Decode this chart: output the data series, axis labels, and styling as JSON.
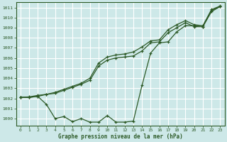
{
  "background_color": "#cde8e8",
  "grid_color": "#ffffff",
  "line_color": "#2d5a27",
  "text_color": "#2d5a27",
  "xlabel": "Graphe pression niveau de la mer (hPa)",
  "ylim": [
    999.3,
    1011.5
  ],
  "xlim": [
    -0.5,
    23.5
  ],
  "yticks": [
    1000,
    1001,
    1002,
    1003,
    1004,
    1005,
    1006,
    1007,
    1008,
    1009,
    1010,
    1011
  ],
  "xticks": [
    0,
    1,
    2,
    3,
    4,
    5,
    6,
    7,
    8,
    9,
    10,
    11,
    12,
    13,
    14,
    15,
    16,
    17,
    18,
    19,
    20,
    21,
    22,
    23
  ],
  "series1": {
    "x": [
      0,
      1,
      2,
      3,
      4,
      5,
      6,
      7,
      8,
      9,
      10,
      11,
      12,
      13,
      14,
      15,
      16,
      17,
      18,
      19,
      20,
      21,
      22,
      23
    ],
    "y": [
      1002.1,
      1002.1,
      1002.2,
      1002.4,
      1002.5,
      1002.8,
      1003.1,
      1003.4,
      1003.8,
      1005.2,
      1005.8,
      1006.0,
      1006.1,
      1006.2,
      1006.7,
      1007.5,
      1007.6,
      1008.5,
      1009.0,
      1009.5,
      1009.1,
      1009.1,
      1010.6,
      1011.1
    ]
  },
  "series2": {
    "x": [
      0,
      1,
      2,
      3,
      4,
      5,
      6,
      7,
      8,
      9,
      10,
      11,
      12,
      13,
      14,
      15,
      16,
      17,
      18,
      19,
      20,
      21,
      22,
      23
    ],
    "y": [
      1002.1,
      1002.15,
      1002.3,
      1002.4,
      1002.6,
      1002.9,
      1003.2,
      1003.5,
      1004.0,
      1005.5,
      1006.1,
      1006.3,
      1006.4,
      1006.6,
      1007.1,
      1007.7,
      1007.8,
      1008.8,
      1009.3,
      1009.7,
      1009.3,
      1009.2,
      1010.8,
      1011.15
    ]
  },
  "series3": {
    "x": [
      0,
      1,
      2,
      3,
      4,
      5,
      6,
      7,
      8,
      9,
      10,
      11,
      12,
      13,
      14,
      15,
      16,
      17,
      18,
      19,
      20,
      21,
      22,
      23
    ],
    "y": [
      1002.1,
      1002.1,
      1002.2,
      1001.4,
      1000.0,
      1000.2,
      999.7,
      1000.0,
      999.65,
      999.65,
      1000.3,
      999.65,
      999.65,
      999.75,
      1003.3,
      1006.5,
      1007.5,
      1007.6,
      1008.6,
      1009.2,
      1009.2,
      1009.1,
      1010.7,
      1011.1
    ]
  }
}
